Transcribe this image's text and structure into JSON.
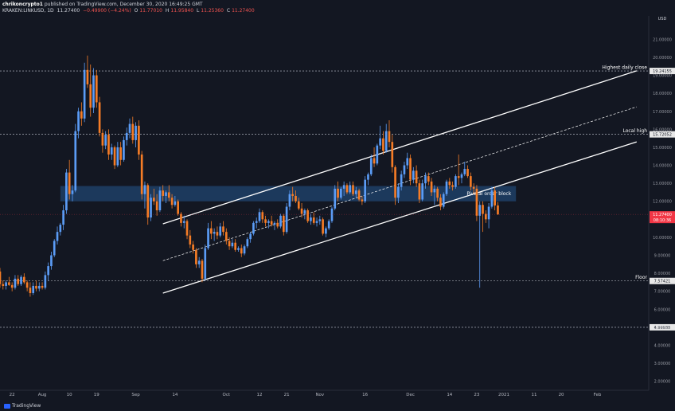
{
  "header": {
    "publisher_user": "chrikoncrypto1",
    "publisher_text": "published on TradingView.com, December 30, 2020 16:49:25 GMT",
    "symbol": "KRAKEN:LINKUSD, 1D",
    "last": "11.27400",
    "change": "−0.49900 (−4.24%)",
    "o": "11.77010",
    "h": "11.95840",
    "l": "11.25360",
    "c": "11.27400"
  },
  "footer": {
    "logo_text": "TradingView"
  },
  "colors": {
    "background": "#131722",
    "up": "#5b9cf6",
    "down": "#f57c26",
    "zone": "#1e3f66",
    "channel": "#ffffff",
    "text": "#d1d4dc",
    "price_badge": "#f23645"
  },
  "chart_data": {
    "type": "candlestick",
    "currency": "USD",
    "ylim": [
      1.5,
      22.3
    ],
    "y_ticks": [
      "2.00000",
      "3.00000",
      "4.00000",
      "5.00000",
      "6.00000",
      "7.00000",
      "8.00000",
      "9.00000",
      "10.00000",
      "11.00000",
      "12.00000",
      "13.00000",
      "14.00000",
      "15.00000",
      "16.00000",
      "17.00000",
      "18.00000",
      "19.00000",
      "20.00000",
      "21.00000"
    ],
    "x_ticks": [
      "22",
      "Aug",
      "10",
      "19",
      "Sep",
      "14",
      "Oct",
      "12",
      "21",
      "Nov",
      "16",
      "Dec",
      "14",
      "23",
      "2021",
      "11",
      "20",
      "Feb"
    ],
    "x_tick_dates": [
      "2020-07-22",
      "2020-08-01",
      "2020-08-10",
      "2020-08-19",
      "2020-09-01",
      "2020-09-14",
      "2020-10-01",
      "2020-10-12",
      "2020-10-21",
      "2020-11-01",
      "2020-11-16",
      "2020-12-01",
      "2020-12-14",
      "2020-12-23",
      "2021-01-01",
      "2021-01-11",
      "2021-01-20",
      "2021-02-01"
    ],
    "x_range": [
      "2020-07-18",
      "2021-02-18"
    ],
    "levels": [
      {
        "label": "Highest daily close",
        "value": 19.24155,
        "badge": "19.24155"
      },
      {
        "label": "Local high",
        "value": 15.72052,
        "badge": "15.72052"
      },
      {
        "label": "Floor",
        "value": 7.57421,
        "badge": "7.57421"
      },
      {
        "label": "",
        "value": 4.99935,
        "badge": "4.99935"
      }
    ],
    "zone": {
      "label": "Pivotal order block",
      "low": 12.0,
      "high": 12.85,
      "start": "2020-08-07",
      "end": "2021-01-05"
    },
    "channel": {
      "upper": [
        [
          "2020-09-10",
          10.75
        ],
        [
          "2021-02-14",
          19.25
        ]
      ],
      "middle": [
        [
          "2020-09-10",
          8.7
        ],
        [
          "2021-02-14",
          17.25
        ]
      ],
      "lower": [
        [
          "2020-09-10",
          6.9
        ],
        [
          "2021-02-14",
          15.3
        ]
      ]
    },
    "last_price": {
      "value": 11.274,
      "badge": "11.27400",
      "countdown": "08:10:36"
    },
    "candles": [
      [
        "2020-07-18",
        8.1,
        8.3,
        7.2,
        7.4
      ],
      [
        "2020-07-19",
        7.4,
        7.6,
        7.1,
        7.3
      ],
      [
        "2020-07-20",
        7.3,
        7.6,
        7.1,
        7.5
      ],
      [
        "2020-07-21",
        7.5,
        7.8,
        7.3,
        7.35
      ],
      [
        "2020-07-22",
        7.35,
        7.5,
        7.0,
        7.2
      ],
      [
        "2020-07-23",
        7.2,
        7.9,
        7.1,
        7.7
      ],
      [
        "2020-07-24",
        7.7,
        7.9,
        7.3,
        7.4
      ],
      [
        "2020-07-25",
        7.4,
        7.9,
        7.3,
        7.8
      ],
      [
        "2020-07-26",
        7.8,
        8.0,
        7.4,
        7.5
      ],
      [
        "2020-07-27",
        7.5,
        7.6,
        7.0,
        7.2
      ],
      [
        "2020-07-28",
        7.2,
        7.5,
        6.7,
        6.9
      ],
      [
        "2020-07-29",
        6.9,
        7.5,
        6.8,
        7.3
      ],
      [
        "2020-07-30",
        7.3,
        7.6,
        7.0,
        7.15
      ],
      [
        "2020-07-31",
        7.15,
        7.5,
        7.0,
        7.3
      ],
      [
        "2020-08-01",
        7.3,
        7.5,
        7.1,
        7.2
      ],
      [
        "2020-08-02",
        7.2,
        8.1,
        7.1,
        7.9
      ],
      [
        "2020-08-03",
        7.9,
        8.6,
        7.6,
        8.4
      ],
      [
        "2020-08-04",
        8.4,
        9.2,
        8.2,
        9.0
      ],
      [
        "2020-08-05",
        9.0,
        9.9,
        8.9,
        9.8
      ],
      [
        "2020-08-06",
        9.8,
        10.6,
        9.6,
        10.3
      ],
      [
        "2020-08-07",
        10.3,
        10.8,
        10.1,
        10.7
      ],
      [
        "2020-08-08",
        10.7,
        11.8,
        10.4,
        11.5
      ],
      [
        "2020-08-09",
        11.5,
        13.8,
        11.3,
        13.6
      ],
      [
        "2020-08-10",
        13.6,
        14.3,
        12.1,
        12.4
      ],
      [
        "2020-08-11",
        12.4,
        12.9,
        12.0,
        12.6
      ],
      [
        "2020-08-12",
        12.6,
        16.3,
        12.5,
        15.9
      ],
      [
        "2020-08-13",
        15.9,
        17.2,
        15.5,
        17.0
      ],
      [
        "2020-08-14",
        17.0,
        17.5,
        16.2,
        16.6
      ],
      [
        "2020-08-15",
        16.6,
        19.7,
        16.4,
        19.3
      ],
      [
        "2020-08-16",
        19.3,
        20.1,
        18.3,
        18.5
      ],
      [
        "2020-08-17",
        18.5,
        19.6,
        16.7,
        17.2
      ],
      [
        "2020-08-18",
        17.2,
        19.4,
        16.9,
        19.0
      ],
      [
        "2020-08-19",
        19.0,
        19.3,
        17.2,
        17.5
      ],
      [
        "2020-08-20",
        17.5,
        17.8,
        15.6,
        15.8
      ],
      [
        "2020-08-21",
        15.8,
        16.0,
        14.7,
        15.1
      ],
      [
        "2020-08-22",
        15.1,
        15.9,
        14.9,
        15.7
      ],
      [
        "2020-08-23",
        15.7,
        16.0,
        14.3,
        14.6
      ],
      [
        "2020-08-24",
        14.6,
        15.2,
        14.3,
        15.0
      ],
      [
        "2020-08-25",
        15.0,
        15.1,
        13.8,
        14.0
      ],
      [
        "2020-08-26",
        14.0,
        15.3,
        13.9,
        15.0
      ],
      [
        "2020-08-27",
        15.0,
        15.3,
        14.0,
        14.3
      ],
      [
        "2020-08-28",
        14.3,
        15.6,
        14.2,
        15.4
      ],
      [
        "2020-08-29",
        15.4,
        16.1,
        15.1,
        15.8
      ],
      [
        "2020-08-30",
        15.8,
        16.6,
        15.5,
        16.3
      ],
      [
        "2020-08-31",
        16.3,
        16.7,
        15.2,
        15.4
      ],
      [
        "2020-09-01",
        15.4,
        16.4,
        15.0,
        16.2
      ],
      [
        "2020-09-02",
        16.2,
        16.5,
        14.3,
        14.6
      ],
      [
        "2020-09-03",
        14.6,
        14.8,
        12.1,
        12.4
      ],
      [
        "2020-09-04",
        12.4,
        13.1,
        11.6,
        12.9
      ],
      [
        "2020-09-05",
        12.9,
        13.0,
        10.7,
        11.1
      ],
      [
        "2020-09-06",
        11.1,
        12.4,
        10.9,
        12.2
      ],
      [
        "2020-09-07",
        12.2,
        12.7,
        11.8,
        12.0
      ],
      [
        "2020-09-08",
        12.0,
        12.4,
        11.2,
        11.5
      ],
      [
        "2020-09-09",
        11.5,
        12.8,
        11.4,
        12.6
      ],
      [
        "2020-09-10",
        12.6,
        12.9,
        12.0,
        12.3
      ],
      [
        "2020-09-11",
        12.3,
        12.6,
        11.9,
        12.5
      ],
      [
        "2020-09-12",
        12.5,
        12.9,
        12.0,
        12.2
      ],
      [
        "2020-09-13",
        12.2,
        12.4,
        11.6,
        11.8
      ],
      [
        "2020-09-14",
        11.8,
        12.3,
        11.7,
        12.0
      ],
      [
        "2020-09-15",
        12.0,
        12.1,
        11.2,
        11.3
      ],
      [
        "2020-09-16",
        11.3,
        11.4,
        10.6,
        10.8
      ],
      [
        "2020-09-17",
        10.8,
        11.2,
        10.5,
        10.9
      ],
      [
        "2020-09-18",
        10.9,
        11.0,
        9.9,
        10.1
      ],
      [
        "2020-09-19",
        10.1,
        10.4,
        9.4,
        9.6
      ],
      [
        "2020-09-20",
        9.6,
        9.8,
        9.1,
        9.3
      ],
      [
        "2020-09-21",
        9.3,
        9.4,
        8.3,
        8.5
      ],
      [
        "2020-09-22",
        8.5,
        8.9,
        8.3,
        8.7
      ],
      [
        "2020-09-23",
        8.7,
        8.8,
        7.5,
        7.7
      ],
      [
        "2020-09-24",
        7.7,
        9.6,
        7.6,
        9.4
      ],
      [
        "2020-09-25",
        9.4,
        10.8,
        9.3,
        10.5
      ],
      [
        "2020-09-26",
        10.5,
        10.9,
        9.9,
        10.2
      ],
      [
        "2020-09-27",
        10.2,
        10.5,
        9.8,
        10.3
      ],
      [
        "2020-09-28",
        10.3,
        10.6,
        9.9,
        10.1
      ],
      [
        "2020-09-29",
        10.1,
        10.8,
        10.0,
        10.6
      ],
      [
        "2020-09-30",
        10.6,
        10.9,
        10.1,
        10.3
      ],
      [
        "2020-10-01",
        10.3,
        10.5,
        9.6,
        9.8
      ],
      [
        "2020-10-02",
        9.8,
        10.0,
        9.3,
        9.5
      ],
      [
        "2020-10-03",
        9.5,
        9.9,
        9.4,
        9.7
      ],
      [
        "2020-10-04",
        9.7,
        9.9,
        9.2,
        9.3
      ],
      [
        "2020-10-05",
        9.3,
        9.5,
        9.2,
        9.4
      ],
      [
        "2020-10-06",
        9.4,
        9.6,
        8.9,
        9.1
      ],
      [
        "2020-10-07",
        9.1,
        9.6,
        9.0,
        9.5
      ],
      [
        "2020-10-08",
        9.5,
        10.0,
        9.4,
        9.9
      ],
      [
        "2020-10-09",
        9.9,
        10.3,
        9.7,
        10.2
      ],
      [
        "2020-10-10",
        10.2,
        10.9,
        10.1,
        10.8
      ],
      [
        "2020-10-11",
        10.8,
        11.1,
        10.5,
        10.9
      ],
      [
        "2020-10-12",
        10.9,
        11.6,
        10.8,
        11.4
      ],
      [
        "2020-10-13",
        11.4,
        11.5,
        10.8,
        11.0
      ],
      [
        "2020-10-14",
        11.0,
        11.2,
        10.6,
        10.8
      ],
      [
        "2020-10-15",
        10.8,
        11.0,
        10.5,
        10.9
      ],
      [
        "2020-10-16",
        10.9,
        11.2,
        10.6,
        10.7
      ],
      [
        "2020-10-17",
        10.7,
        10.9,
        10.4,
        10.8
      ],
      [
        "2020-10-18",
        10.8,
        11.0,
        10.5,
        10.6
      ],
      [
        "2020-10-19",
        10.6,
        11.3,
        10.5,
        11.2
      ],
      [
        "2020-10-20",
        11.2,
        11.3,
        10.1,
        10.3
      ],
      [
        "2020-10-21",
        10.3,
        11.9,
        10.2,
        11.7
      ],
      [
        "2020-10-22",
        11.7,
        12.6,
        11.5,
        12.4
      ],
      [
        "2020-10-23",
        12.4,
        12.8,
        12.0,
        12.3
      ],
      [
        "2020-10-24",
        12.3,
        12.6,
        11.9,
        12.0
      ],
      [
        "2020-10-25",
        12.0,
        12.2,
        11.5,
        11.6
      ],
      [
        "2020-10-26",
        11.6,
        11.9,
        11.1,
        11.3
      ],
      [
        "2020-10-27",
        11.3,
        11.6,
        11.0,
        11.5
      ],
      [
        "2020-10-28",
        11.5,
        11.6,
        10.8,
        10.9
      ],
      [
        "2020-10-29",
        10.9,
        11.3,
        10.7,
        11.1
      ],
      [
        "2020-10-30",
        11.1,
        11.4,
        10.7,
        10.8
      ],
      [
        "2020-10-31",
        10.8,
        11.1,
        10.6,
        10.9
      ],
      [
        "2020-11-01",
        10.9,
        11.2,
        10.7,
        11.0
      ],
      [
        "2020-11-02",
        11.0,
        11.1,
        10.1,
        10.2
      ],
      [
        "2020-11-03",
        10.2,
        10.6,
        10.0,
        10.5
      ],
      [
        "2020-11-04",
        10.5,
        11.0,
        10.4,
        10.9
      ],
      [
        "2020-11-05",
        10.9,
        11.7,
        10.8,
        11.6
      ],
      [
        "2020-11-06",
        11.6,
        12.9,
        11.5,
        12.7
      ],
      [
        "2020-11-07",
        12.7,
        13.1,
        12.0,
        12.2
      ],
      [
        "2020-11-08",
        12.2,
        12.8,
        12.1,
        12.7
      ],
      [
        "2020-11-09",
        12.7,
        13.1,
        12.3,
        12.9
      ],
      [
        "2020-11-10",
        12.9,
        13.0,
        12.4,
        12.5
      ],
      [
        "2020-11-11",
        12.5,
        13.1,
        12.4,
        12.9
      ],
      [
        "2020-11-12",
        12.9,
        13.1,
        12.3,
        12.4
      ],
      [
        "2020-11-13",
        12.4,
        12.8,
        12.2,
        12.6
      ],
      [
        "2020-11-14",
        12.6,
        12.7,
        12.0,
        12.1
      ],
      [
        "2020-11-15",
        12.1,
        12.3,
        11.8,
        12.0
      ],
      [
        "2020-11-16",
        12.0,
        13.4,
        11.9,
        13.2
      ],
      [
        "2020-11-17",
        13.2,
        13.6,
        12.9,
        13.5
      ],
      [
        "2020-11-18",
        13.5,
        14.6,
        13.4,
        14.4
      ],
      [
        "2020-11-19",
        14.4,
        15.0,
        13.9,
        14.1
      ],
      [
        "2020-11-20",
        14.1,
        15.2,
        14.0,
        15.1
      ],
      [
        "2020-11-21",
        15.1,
        16.2,
        14.9,
        15.5
      ],
      [
        "2020-11-22",
        15.5,
        15.9,
        14.6,
        14.8
      ],
      [
        "2020-11-23",
        14.8,
        16.3,
        14.7,
        15.9
      ],
      [
        "2020-11-24",
        15.9,
        16.5,
        15.0,
        15.3
      ],
      [
        "2020-11-25",
        15.3,
        15.7,
        13.6,
        13.9
      ],
      [
        "2020-11-26",
        13.9,
        14.0,
        11.8,
        12.2
      ],
      [
        "2020-11-27",
        12.2,
        13.0,
        11.9,
        12.8
      ],
      [
        "2020-11-28",
        12.8,
        13.7,
        12.6,
        13.5
      ],
      [
        "2020-11-29",
        13.5,
        14.2,
        13.3,
        14.0
      ],
      [
        "2020-11-30",
        14.0,
        14.7,
        13.8,
        14.4
      ],
      [
        "2020-12-01",
        14.4,
        14.6,
        12.9,
        13.2
      ],
      [
        "2020-12-02",
        13.2,
        13.9,
        13.0,
        13.7
      ],
      [
        "2020-12-03",
        13.7,
        14.0,
        12.8,
        13.0
      ],
      [
        "2020-12-04",
        13.0,
        13.2,
        11.9,
        12.1
      ],
      [
        "2020-12-05",
        12.1,
        13.2,
        12.0,
        13.0
      ],
      [
        "2020-12-06",
        13.0,
        13.6,
        12.7,
        13.4
      ],
      [
        "2020-12-07",
        13.4,
        13.6,
        12.9,
        13.1
      ],
      [
        "2020-12-08",
        13.1,
        13.3,
        12.3,
        12.5
      ],
      [
        "2020-12-09",
        12.5,
        12.9,
        11.8,
        12.7
      ],
      [
        "2020-12-10",
        12.7,
        12.8,
        12.0,
        12.2
      ],
      [
        "2020-12-11",
        12.2,
        12.4,
        11.5,
        11.7
      ],
      [
        "2020-12-12",
        11.7,
        12.5,
        11.6,
        12.4
      ],
      [
        "2020-12-13",
        12.4,
        13.2,
        12.3,
        13.1
      ],
      [
        "2020-12-14",
        13.1,
        13.3,
        12.7,
        12.9
      ],
      [
        "2020-12-15",
        12.9,
        13.1,
        12.6,
        12.8
      ],
      [
        "2020-12-16",
        12.8,
        13.5,
        12.7,
        13.4
      ],
      [
        "2020-12-17",
        13.4,
        14.6,
        12.9,
        13.3
      ],
      [
        "2020-12-18",
        13.3,
        13.6,
        13.0,
        13.5
      ],
      [
        "2020-12-19",
        13.5,
        14.2,
        13.4,
        13.8
      ],
      [
        "2020-12-20",
        13.8,
        14.0,
        13.3,
        13.4
      ],
      [
        "2020-12-21",
        13.4,
        13.6,
        12.6,
        12.8
      ],
      [
        "2020-12-22",
        12.8,
        13.0,
        12.4,
        12.7
      ],
      [
        "2020-12-23",
        12.7,
        12.9,
        10.9,
        11.2
      ],
      [
        "2020-12-24",
        11.2,
        12.0,
        7.2,
        11.8
      ],
      [
        "2020-12-25",
        11.8,
        12.0,
        10.3,
        11.3
      ],
      [
        "2020-12-26",
        11.3,
        11.5,
        10.8,
        11.0
      ],
      [
        "2020-12-27",
        11.0,
        11.9,
        10.5,
        11.7
      ],
      [
        "2020-12-28",
        11.7,
        12.8,
        11.6,
        12.6
      ],
      [
        "2020-12-29",
        12.6,
        12.8,
        11.5,
        11.77
      ],
      [
        "2020-12-30",
        11.77,
        11.96,
        11.25,
        11.274
      ]
    ]
  }
}
